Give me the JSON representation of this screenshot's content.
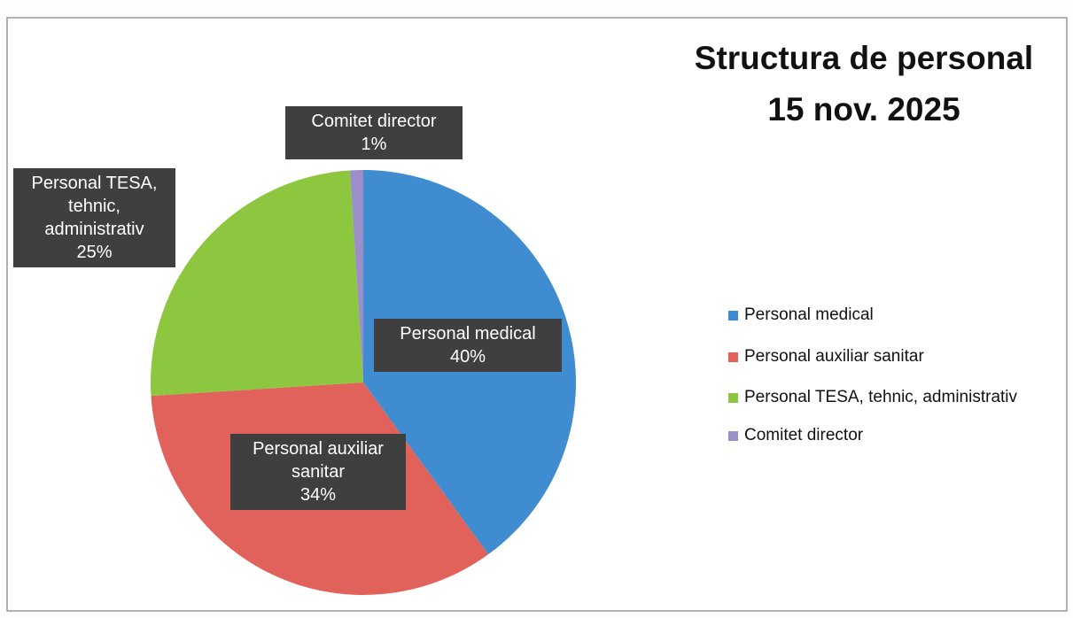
{
  "chart_data": {
    "type": "pie",
    "title": "Structura de personal",
    "subtitle": "15 nov. 2025",
    "categories": [
      "Personal medical",
      "Personal auxiliar sanitar",
      "Personal TESA, tehnic, administrativ",
      "Comitet director"
    ],
    "values": [
      40,
      34,
      25,
      1
    ],
    "value_labels": [
      "40%",
      "34%",
      "25%",
      "1%"
    ],
    "colors": [
      "#3f8dd0",
      "#e0625a",
      "#8dc63f",
      "#9a8fc8"
    ],
    "legend": "right"
  }
}
